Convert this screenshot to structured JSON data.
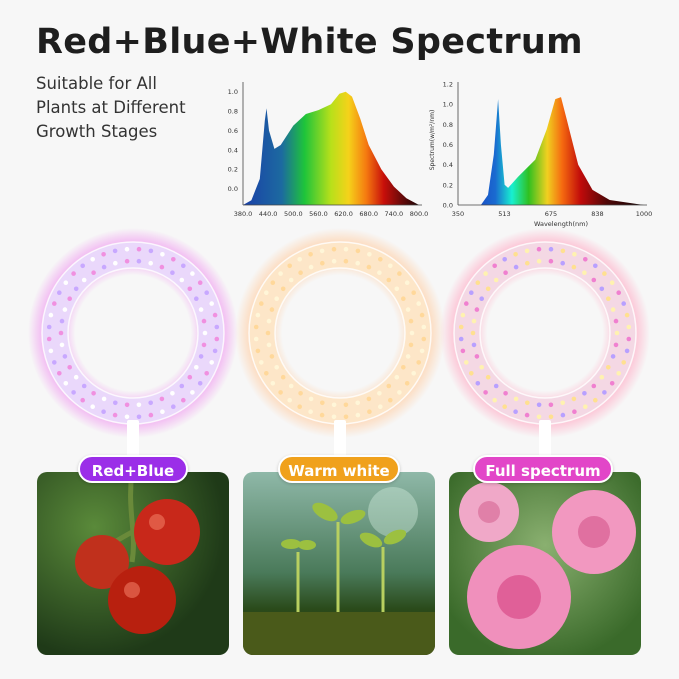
{
  "title": "Red+Blue+White Spectrum",
  "subtitle": [
    "Suitable for All",
    "Plants at Different",
    "Growth Stages"
  ],
  "modes": [
    {
      "label": "Red+Blue",
      "color": "#9b2ee8"
    },
    {
      "label": "Warm white",
      "color": "#f0a11c"
    },
    {
      "label": "Full spectrum",
      "color": "#e246c8"
    }
  ],
  "chart_data": [
    {
      "type": "area",
      "x_ticks": [
        "380.0",
        "440.0",
        "500.0",
        "560.0",
        "620.0",
        "680.0",
        "740.0",
        "800.0"
      ],
      "y_ticks": [
        "0.0",
        "0.2",
        "0.4",
        "0.6",
        "0.8",
        "1.0"
      ],
      "xlim": [
        380,
        800
      ],
      "ylim": [
        -0.17,
        1.08
      ],
      "xlabel": "",
      "ylabel": "",
      "x": [
        380,
        400,
        420,
        432,
        436,
        442,
        455,
        470,
        500,
        530,
        560,
        590,
        610,
        625,
        640,
        660,
        680,
        710,
        740,
        770,
        800
      ],
      "y": [
        -0.17,
        -0.12,
        0.1,
        0.7,
        0.83,
        0.6,
        0.41,
        0.45,
        0.65,
        0.77,
        0.81,
        0.87,
        0.98,
        1.0,
        0.95,
        0.72,
        0.45,
        0.2,
        0.02,
        -0.1,
        -0.17
      ]
    },
    {
      "type": "area",
      "x_ticks": [
        "350",
        "513",
        "675",
        "838",
        "1000"
      ],
      "y_ticks": [
        "0.0",
        "0.2",
        "0.4",
        "0.6",
        "0.8",
        "1.0",
        "1.2"
      ],
      "xlim": [
        350,
        1000
      ],
      "ylim": [
        0,
        1.2
      ],
      "xlabel": "Wavelength(nm)",
      "ylabel": "Spectrum(w/m²/nm)",
      "x": [
        350,
        430,
        455,
        475,
        490,
        500,
        513,
        525,
        560,
        620,
        660,
        690,
        710,
        730,
        770,
        820,
        880,
        1000
      ],
      "y": [
        0,
        0,
        0.1,
        0.5,
        1.05,
        0.6,
        0.2,
        0.17,
        0.28,
        0.45,
        0.75,
        1.05,
        1.07,
        0.85,
        0.4,
        0.15,
        0.05,
        0
      ]
    }
  ]
}
